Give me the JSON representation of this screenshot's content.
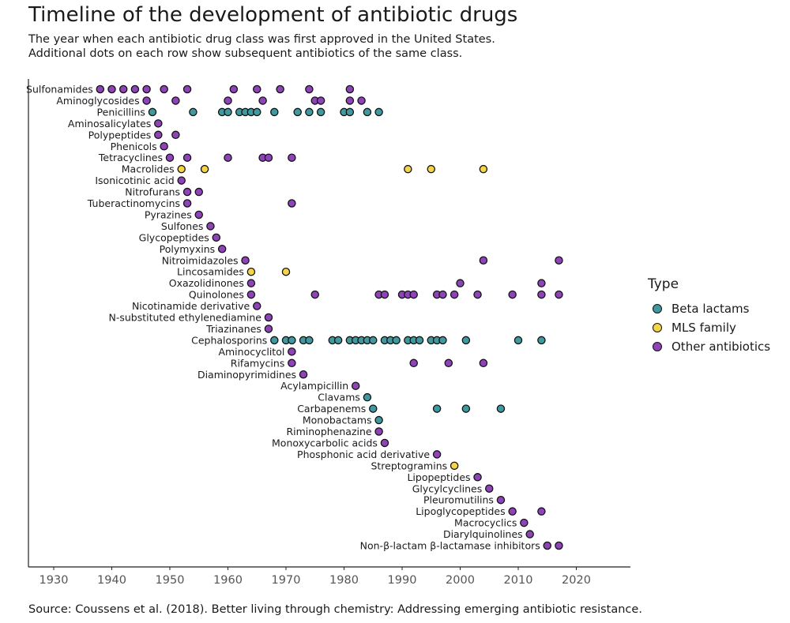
{
  "title": "Timeline of the development of antibiotic drugs",
  "subtitle_line1": "The year when each antibiotic drug class was first approved in the United States.",
  "subtitle_line2": "Additional dots on each row show subsequent antibiotics of the same class.",
  "source": "Source: Coussens et al. (2018). Better living through chemistry: Addressing emerging antibiotic resistance.",
  "legend": {
    "title": "Type",
    "items": [
      {
        "label": "Beta lactams",
        "color": "#40999e"
      },
      {
        "label": "MLS family",
        "color": "#f5d547"
      },
      {
        "label": "Other antibiotics",
        "color": "#8e44b8"
      }
    ]
  },
  "chart_data": {
    "type": "scatter",
    "title": "Timeline of the development of antibiotic drugs",
    "xlabel": "",
    "ylabel": "",
    "xlim": [
      1926,
      2028
    ],
    "xticks": [
      1930,
      1940,
      1950,
      1960,
      1970,
      1980,
      1990,
      2000,
      2010,
      2020
    ],
    "grid": false,
    "legend_position": "right",
    "type_colors": {
      "Beta lactams": "#40999e",
      "MLS family": "#f5d547",
      "Other antibiotics": "#8e44b8"
    },
    "classes": [
      {
        "name": "Sulfonamides",
        "type": "Other antibiotics",
        "years": [
          1938,
          1940,
          1942,
          1944,
          1946,
          1949,
          1953,
          1961,
          1965,
          1969,
          1974,
          1981
        ]
      },
      {
        "name": "Aminoglycosides",
        "type": "Other antibiotics",
        "years": [
          1946,
          1951,
          1960,
          1966,
          1975,
          1976,
          1981,
          1983
        ]
      },
      {
        "name": "Penicillins",
        "type": "Beta lactams",
        "years": [
          1947,
          1954,
          1959,
          1960,
          1962,
          1963,
          1964,
          1965,
          1968,
          1972,
          1974,
          1976,
          1980,
          1981,
          1984,
          1986
        ]
      },
      {
        "name": "Aminosalicylates",
        "type": "Other antibiotics",
        "years": [
          1948
        ]
      },
      {
        "name": "Polypeptides",
        "type": "Other antibiotics",
        "years": [
          1948,
          1951
        ]
      },
      {
        "name": "Phenicols",
        "type": "Other antibiotics",
        "years": [
          1949
        ]
      },
      {
        "name": "Tetracyclines",
        "type": "Other antibiotics",
        "years": [
          1950,
          1953,
          1960,
          1966,
          1967,
          1971
        ]
      },
      {
        "name": "Macrolides",
        "type": "MLS family",
        "years": [
          1952,
          1956,
          1991,
          1995,
          2004
        ]
      },
      {
        "name": "Isonicotinic acid",
        "type": "Other antibiotics",
        "years": [
          1952
        ]
      },
      {
        "name": "Nitrofurans",
        "type": "Other antibiotics",
        "years": [
          1953,
          1955
        ]
      },
      {
        "name": "Tuberactinomycins",
        "type": "Other antibiotics",
        "years": [
          1953,
          1971
        ]
      },
      {
        "name": "Pyrazines",
        "type": "Other antibiotics",
        "years": [
          1955
        ]
      },
      {
        "name": "Sulfones",
        "type": "Other antibiotics",
        "years": [
          1957
        ]
      },
      {
        "name": "Glycopeptides",
        "type": "Other antibiotics",
        "years": [
          1958
        ]
      },
      {
        "name": "Polymyxins",
        "type": "Other antibiotics",
        "years": [
          1959
        ]
      },
      {
        "name": "Nitroimidazoles",
        "type": "Other antibiotics",
        "years": [
          1963,
          2004,
          2017
        ]
      },
      {
        "name": "Lincosamides",
        "type": "MLS family",
        "years": [
          1964,
          1970
        ]
      },
      {
        "name": "Oxazolidinones",
        "type": "Other antibiotics",
        "years": [
          1964,
          2000,
          2014
        ]
      },
      {
        "name": "Quinolones",
        "type": "Other antibiotics",
        "years": [
          1964,
          1975,
          1986,
          1987,
          1990,
          1991,
          1992,
          1996,
          1997,
          1999,
          2003,
          2009,
          2014,
          2017
        ]
      },
      {
        "name": "Nicotinamide derivative",
        "type": "Other antibiotics",
        "years": [
          1965
        ]
      },
      {
        "name": "N-substituted ethylenediamine",
        "type": "Other antibiotics",
        "years": [
          1967
        ]
      },
      {
        "name": "Triazinanes",
        "type": "Other antibiotics",
        "years": [
          1967
        ]
      },
      {
        "name": "Cephalosporins",
        "type": "Beta lactams",
        "years": [
          1968,
          1970,
          1971,
          1973,
          1974,
          1978,
          1979,
          1981,
          1982,
          1983,
          1984,
          1985,
          1987,
          1988,
          1989,
          1991,
          1992,
          1993,
          1995,
          1996,
          1997,
          2001,
          2010,
          2014
        ]
      },
      {
        "name": "Aminocyclitol",
        "type": "Other antibiotics",
        "years": [
          1971
        ]
      },
      {
        "name": "Rifamycins",
        "type": "Other antibiotics",
        "years": [
          1971,
          1992,
          1998,
          2004
        ]
      },
      {
        "name": "Diaminopyrimidines",
        "type": "Other antibiotics",
        "years": [
          1973
        ]
      },
      {
        "name": "Acylampicillin",
        "type": "Other antibiotics",
        "years": [
          1982
        ]
      },
      {
        "name": "Clavams",
        "type": "Beta lactams",
        "years": [
          1984
        ]
      },
      {
        "name": "Carbapenems",
        "type": "Beta lactams",
        "years": [
          1985,
          1996,
          2001,
          2007
        ]
      },
      {
        "name": "Monobactams",
        "type": "Beta lactams",
        "years": [
          1986
        ]
      },
      {
        "name": "Riminophenazine",
        "type": "Other antibiotics",
        "years": [
          1986
        ]
      },
      {
        "name": "Monoxycarbolic acids",
        "type": "Other antibiotics",
        "years": [
          1987
        ]
      },
      {
        "name": "Phosphonic acid derivative",
        "type": "Other antibiotics",
        "years": [
          1996
        ]
      },
      {
        "name": "Streptogramins",
        "type": "MLS family",
        "years": [
          1999
        ]
      },
      {
        "name": "Lipopeptides",
        "type": "Other antibiotics",
        "years": [
          2003
        ]
      },
      {
        "name": "Glycylcyclines",
        "type": "Other antibiotics",
        "years": [
          2005
        ]
      },
      {
        "name": "Pleuromutilins",
        "type": "Other antibiotics",
        "years": [
          2007
        ]
      },
      {
        "name": "Lipoglycopeptides",
        "type": "Other antibiotics",
        "years": [
          2009,
          2014
        ]
      },
      {
        "name": "Macrocyclics",
        "type": "Other antibiotics",
        "years": [
          2011
        ]
      },
      {
        "name": "Diarylquinolines",
        "type": "Other antibiotics",
        "years": [
          2012
        ]
      },
      {
        "name": "Non-β-lactam β-lactamase inhibitors",
        "type": "Other antibiotics",
        "years": [
          2015,
          2017
        ]
      }
    ]
  }
}
